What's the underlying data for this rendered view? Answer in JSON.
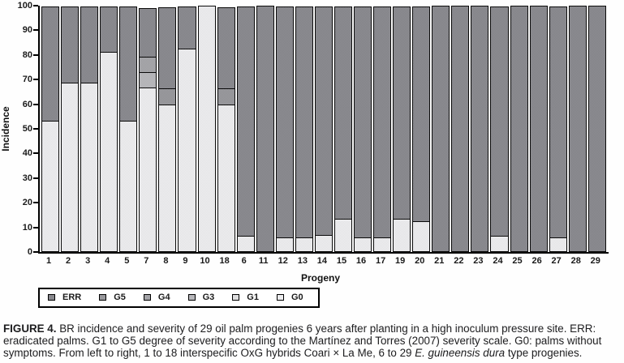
{
  "chart_data": {
    "type": "bar",
    "stacked": true,
    "title": "",
    "xlabel": "Progeny",
    "ylabel": "Incidence",
    "ylim": [
      0,
      100
    ],
    "yticks": [
      0,
      10,
      20,
      30,
      40,
      50,
      60,
      70,
      80,
      90,
      100
    ],
    "grid": false,
    "legend_position": "bottom-left",
    "legend_order": [
      "ERR",
      "G5",
      "G4",
      "G3",
      "G1",
      "G0"
    ],
    "categories": [
      "1",
      "2",
      "3",
      "4",
      "5",
      "7",
      "8",
      "9",
      "10",
      "18",
      "6",
      "11",
      "12",
      "13",
      "14",
      "15",
      "16",
      "17",
      "19",
      "20",
      "21",
      "22",
      "23",
      "24",
      "25",
      "26",
      "27",
      "28",
      "29"
    ],
    "series": [
      {
        "name": "G0",
        "color": "#ededef",
        "values": [
          53.3,
          68.8,
          68.8,
          81.3,
          53.3,
          66.7,
          60.0,
          82.5,
          100.0,
          60.0,
          6.5,
          0,
          6.0,
          6.0,
          7.0,
          13.5,
          6.0,
          6.0,
          13.5,
          12.5,
          0,
          0,
          0,
          6.5,
          0,
          0,
          6.0,
          0,
          0
        ]
      },
      {
        "name": "G1",
        "color": "#dededf",
        "values": [
          0,
          0,
          0,
          0,
          0,
          0,
          0,
          0,
          0,
          0,
          0,
          0,
          0,
          0,
          0,
          0,
          0,
          0,
          0,
          0,
          0,
          0,
          0,
          0,
          0,
          0,
          0,
          0,
          0
        ]
      },
      {
        "name": "G3",
        "color": "#b7b7bb",
        "values": [
          0,
          0,
          0,
          0,
          0,
          6.7,
          0,
          0,
          0,
          0,
          0,
          0,
          0,
          0,
          0,
          0,
          0,
          0,
          0,
          0,
          0,
          0,
          0,
          0,
          0,
          0,
          0,
          0,
          0
        ]
      },
      {
        "name": "G4",
        "color": "#a4a4a8",
        "values": [
          0,
          0,
          0,
          0,
          0,
          6.7,
          0,
          0,
          0,
          0,
          0,
          0,
          0,
          0,
          0,
          0,
          0,
          0,
          0,
          0,
          0,
          0,
          0,
          0,
          0,
          0,
          0,
          0,
          0
        ]
      },
      {
        "name": "G5",
        "color": "#97979b",
        "values": [
          0,
          0,
          0,
          0,
          0,
          0,
          6.7,
          0,
          0,
          6.7,
          0,
          0,
          0,
          0,
          0,
          0,
          0,
          0,
          0,
          0,
          0,
          0,
          0,
          0,
          0,
          0,
          0,
          0,
          0
        ]
      },
      {
        "name": "ERR",
        "color": "#88888d",
        "values": [
          46.7,
          31.2,
          31.2,
          18.7,
          46.7,
          19.9,
          33.3,
          17.5,
          0,
          33.3,
          93.5,
          100,
          94.0,
          94.0,
          93.0,
          86.5,
          94.0,
          94.0,
          86.5,
          87.5,
          100,
          100,
          100,
          93.5,
          100,
          100,
          94.0,
          100,
          100
        ]
      }
    ]
  },
  "caption": {
    "figure_label": "FIGURE 4.",
    "body_1": " BR incidence and severity of 29 oil palm progenies 6 years after planting in a high inoculum pressure site. ERR: eradicated palms. G1 to G5 degree of severity according to the Martínez and Torres (2007) severity scale. G0: palms without symptoms. From left to right, 1 to 18 interspecific OxG hybrids Coari × La Me, 6 to 29 ",
    "species_italic": "E. guineensis dura",
    "body_2": " type progenies."
  }
}
